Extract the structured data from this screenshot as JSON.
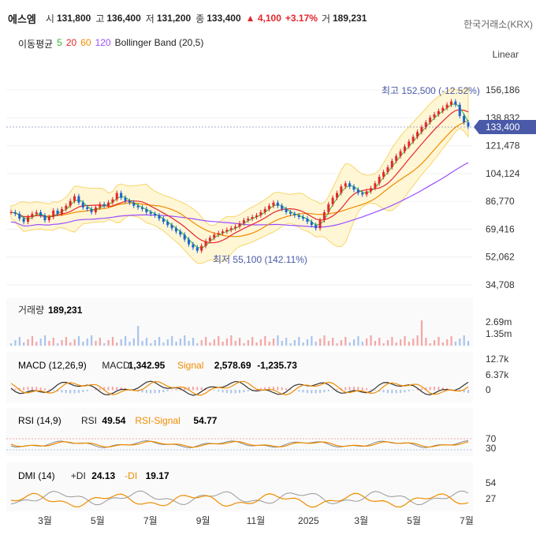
{
  "header": {
    "name": "에스엠",
    "open_label": "시",
    "open": "131,800",
    "high_label": "고",
    "high": "136,400",
    "low_label": "저",
    "low": "131,200",
    "close_label": "종",
    "close": "133,400",
    "change": "▲ 4,100",
    "change_pct": "+3.17%",
    "volume_label": "거",
    "volume": "189,231",
    "exchange": "한국거래소(KRX)",
    "scale_mode": "Linear"
  },
  "ma_legend": {
    "label": "이동평균",
    "items": [
      {
        "text": "5",
        "color": "#2eb82e"
      },
      {
        "text": "20",
        "color": "#e4262c"
      },
      {
        "text": "60",
        "color": "#f08c00"
      },
      {
        "text": "120",
        "color": "#9b4dff"
      }
    ],
    "bollinger": "Bollinger Band (20,5)"
  },
  "colors": {
    "up": "#e4262c",
    "down": "#1a63d1",
    "price_tag": "#4a5aa8",
    "band_fill": "#fff6d6",
    "band_line": "#f6d66a",
    "ma5": "#2eb82e",
    "ma20": "#e4262c",
    "ma60": "#f08c00",
    "ma120": "#9b4dff",
    "signal": "#f08c00",
    "macd": "#333333"
  },
  "chart_data": [
    {
      "type": "candlestick",
      "y_ticks": [
        "156,186",
        "138,832",
        "121,478",
        "104,124",
        "86,770",
        "69,416",
        "52,062",
        "34,708"
      ],
      "ylim": [
        34708,
        156186
      ],
      "x_ticks": [
        "3월",
        "5월",
        "7월",
        "9월",
        "11월",
        "2025",
        "3월",
        "5월",
        "7월"
      ],
      "current_price": "133,400",
      "annotations": {
        "high": "최고 152,500 (-12.52%)",
        "low": "최저 55,100 (142.11%)"
      },
      "close": [
        80000,
        79000,
        76000,
        74000,
        77000,
        79000,
        80000,
        78000,
        75000,
        77000,
        81000,
        79000,
        82000,
        84000,
        87000,
        90000,
        86000,
        83000,
        82000,
        80000,
        83000,
        85000,
        84000,
        86000,
        88000,
        92000,
        89000,
        87000,
        86000,
        84000,
        83000,
        82000,
        80000,
        79000,
        78000,
        76000,
        74000,
        72000,
        70000,
        68000,
        66000,
        63000,
        60000,
        58000,
        56000,
        59000,
        62000,
        64000,
        66000,
        67000,
        68000,
        69000,
        70000,
        71000,
        73000,
        75000,
        76000,
        77000,
        78000,
        80000,
        82000,
        84000,
        86000,
        84000,
        82000,
        80000,
        79000,
        78000,
        77000,
        76000,
        74000,
        72000,
        70000,
        75000,
        80000,
        85000,
        89000,
        92000,
        96000,
        98000,
        96000,
        94000,
        92000,
        91000,
        93000,
        95000,
        98000,
        102000,
        105000,
        108000,
        112000,
        115000,
        118000,
        121000,
        124000,
        127000,
        130000,
        133000,
        136000,
        139000,
        141000,
        143000,
        145000,
        147000,
        149000,
        147000,
        140000,
        136000,
        133400
      ],
      "volume_ticks": [
        "2.69m",
        "1.35m"
      ],
      "volume_label": "거래량",
      "volume_value": "189,231"
    },
    {
      "type": "line",
      "title": "MACD (12,26,9)",
      "series": [
        {
          "name": "MACD",
          "value": "1,342.95"
        },
        {
          "name": "Signal",
          "value": "2,578.69"
        }
      ],
      "extra": "-1,235.73",
      "y_ticks": [
        "12.7k",
        "6.37k",
        "0"
      ]
    },
    {
      "type": "line",
      "title": "RSI (14,9)",
      "series": [
        {
          "name": "RSI",
          "value": "49.54"
        },
        {
          "name": "RSI-Signal",
          "value": "54.77"
        }
      ],
      "y_ticks": [
        "70",
        "30"
      ]
    },
    {
      "type": "line",
      "title": "DMI (14)",
      "series": [
        {
          "name": "+DI",
          "value": "24.13"
        },
        {
          "name": "-DI",
          "value": "19.17"
        }
      ],
      "y_ticks": [
        "54",
        "27"
      ]
    }
  ]
}
